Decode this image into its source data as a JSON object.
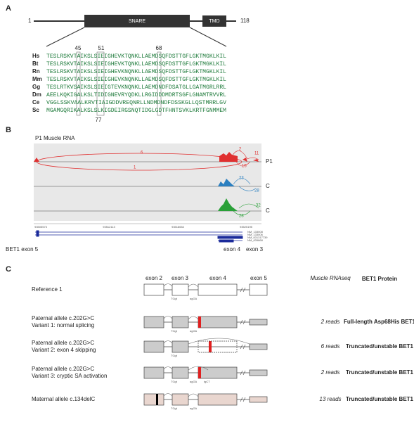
{
  "panel_a": {
    "label": "A",
    "start": "1",
    "end": "118",
    "domains": [
      "SNARE",
      "TMD"
    ],
    "positions": [
      "45",
      "51",
      "68",
      "77"
    ],
    "alignment": [
      {
        "species": "Hs",
        "sequence": "TESLRSKVTAIKSLSIEIGHEVKTQNKLLAEMDSQFDSTTGFLGKTMGKLKIL"
      },
      {
        "species": "Bt",
        "sequence": "TESLRSKVTAIKSLSIEIGHEVKTQNKLLAEMDSQFDSTTGFLGKTMGKLKIL"
      },
      {
        "species": "Rn",
        "sequence": "TESLRSKVTAIKSLSIEIGHEVKNQNKLLAEMDSQFDSTTGFLGKTMGKLKIL"
      },
      {
        "species": "Mm",
        "sequence": "TESLRSKVTAIKSLSIEIGHEVKNQNKLLAEMDSQFDSTTGFLGKTMGKLKIL"
      },
      {
        "species": "Gg",
        "sequence": "TESLRTKVSAIKSLSIEIGTEVKNQNKLLAEMDNDFDSATGLLGATMGRLRRL"
      },
      {
        "species": "Dm",
        "sequence": "AEELKQKIGALKSLTIDIGNEVRYQDKLLRGIDDDMDRTSGFLGNAMTRVVRL"
      },
      {
        "species": "Ce",
        "sequence": "VGGLSSKVAALKRVTIAIGDDVREQNRLLNDMDNDFDSSKGLLQSTMRRLGV"
      },
      {
        "species": "Sc",
        "sequence": "MGAMGQRIKALKSLSLKIGDEIRGSNQTIDGLGDTFHNTSVKLKRTFGNMMEM"
      }
    ]
  },
  "panel_b": {
    "label": "B",
    "title": "P1 Muscle RNA",
    "tracks": [
      "P1",
      "C",
      "C"
    ],
    "junctions": [
      "6",
      "1",
      "2",
      "11",
      "15",
      "23",
      "28",
      "28",
      "32"
    ],
    "coordinates": [
      "93505573",
      "93512113",
      "93518654",
      "93525195"
    ],
    "transcripts": [
      "NM_133008",
      "NM_133006",
      "NM_001317739",
      "NM_005868"
    ],
    "exon_labels": [
      "BET1 exon 5",
      "exon 4",
      "exon 3"
    ]
  },
  "panel_c": {
    "label": "C",
    "headers": [
      "exon 2",
      "exon 3",
      "exon 4",
      "exon 5",
      "Muscle RNAseq",
      "BET1 Protein"
    ],
    "site_labels": [
      "TGgt",
      "agGA",
      "tgCT"
    ],
    "rows": [
      {
        "allele": "Reference 1"
      },
      {
        "allele": "Paternal allele c.202G>C",
        "variant": "Variant 1: normal splicing",
        "reads": "2 reads",
        "protein": "Full-length Asp68His BET1"
      },
      {
        "allele": "Paternal allele c.202G>C",
        "variant": "Variant 2: exon 4 skipping",
        "reads": "6 reads",
        "protein": "Truncated/unstable BET1"
      },
      {
        "allele": "Paternal allele c.202G>C",
        "variant": "Variant 3: cryptic SA activation",
        "reads": "2 reads",
        "protein": "Truncated/unstable BET1"
      },
      {
        "allele": "Maternal allele c.134delC",
        "reads": "13 reads",
        "protein": "Truncated/unstable BET1"
      }
    ]
  }
}
